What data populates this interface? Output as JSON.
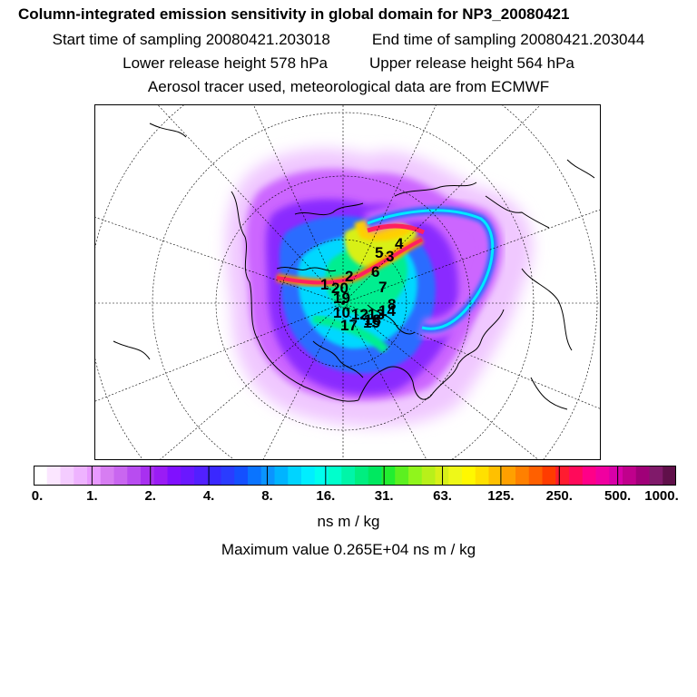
{
  "title": {
    "main": "Column-integrated emission sensitivity in global domain for NP3_20080421",
    "start_label": "Start time of sampling 20080421.203018",
    "end_label": "End time of sampling 20080421.203044",
    "lower_label": "Lower release height  578 hPa",
    "upper_label": "Upper release height  564 hPa",
    "tracer_label": "Aerosol tracer used, meteorological data are from ECMWF"
  },
  "colorbar": {
    "ticks": [
      "0.",
      "1.",
      "2.",
      "4.",
      "8.",
      "16.",
      "31.",
      "63.",
      "125.",
      "250.",
      "500.",
      "1000."
    ],
    "colors": [
      "#ffffff",
      "#fbe6ff",
      "#f4ccff",
      "#eeb3ff",
      "#e899ff",
      "#d77df2",
      "#c966f0",
      "#b84cf0",
      "#a830f0",
      "#9a1cf5",
      "#8010ff",
      "#6a18ff",
      "#5220ff",
      "#3a28ff",
      "#2a3cff",
      "#1450ff",
      "#0a74ff",
      "#0a94ff",
      "#00b4ff",
      "#00d4ff",
      "#00eeff",
      "#00ffee",
      "#00ffcc",
      "#00f5a8",
      "#00ee80",
      "#00e860",
      "#22ee30",
      "#5cf020",
      "#90f51c",
      "#b8f01a",
      "#d8f018",
      "#eef818",
      "#fff800",
      "#ffe000",
      "#ffc000",
      "#ffa000",
      "#ff8000",
      "#ff6000",
      "#ff3c00",
      "#ff1c30",
      "#ff0a5a",
      "#ff0088",
      "#f000a0",
      "#d800a8",
      "#c0008c",
      "#a00078",
      "#801a6a",
      "#60104a"
    ],
    "unit": "ns m / kg",
    "max_label": "Maximum value  0.265E+04 ns m / kg"
  },
  "map_labels": [
    "4",
    "3",
    "5",
    "2",
    "6",
    "1",
    "20",
    "7",
    "8",
    "19",
    "10",
    "12",
    "13",
    "14",
    "15",
    "17",
    "18"
  ],
  "colors": {
    "land_outline": "#000000",
    "grid": "#000000",
    "plume_core": "#ff2060"
  }
}
